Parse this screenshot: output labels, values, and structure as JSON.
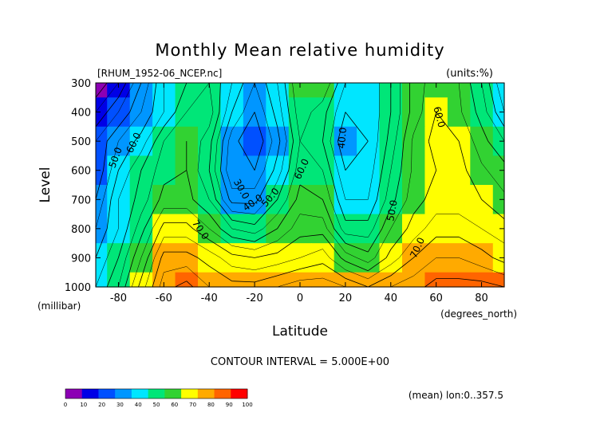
{
  "chart_data": {
    "type": "heatmap",
    "title": "Monthly Mean relative humidity",
    "subtitle_left": "[RHUM_1952-06_NCEP.nc]",
    "subtitle_right": "(units:%)",
    "ylabel": "Level",
    "ylabel_unit": "(millibar)",
    "xlabel": "Latitude",
    "xlabel_unit": "(degrees_north)",
    "xlim": [
      -90,
      90
    ],
    "ylim": [
      1000,
      300
    ],
    "y_axis_reversed": true,
    "x_ticks": [
      -80,
      -60,
      -40,
      -20,
      0,
      20,
      40,
      60,
      80
    ],
    "y_ticks": [
      300,
      400,
      500,
      600,
      700,
      800,
      900,
      1000
    ],
    "levels": [
      300,
      400,
      500,
      600,
      700,
      800,
      900,
      1000
    ],
    "latitudes": [
      -90,
      -80,
      -70,
      -60,
      -50,
      -40,
      -30,
      -20,
      -10,
      0,
      10,
      20,
      30,
      40,
      50,
      60,
      70,
      80,
      90
    ],
    "values": [
      [
        5,
        15,
        30,
        45,
        50,
        55,
        45,
        35,
        45,
        60,
        60,
        45,
        40,
        50,
        62,
        68,
        65,
        55,
        40
      ],
      [
        15,
        25,
        35,
        45,
        55,
        58,
        40,
        30,
        42,
        58,
        52,
        40,
        40,
        50,
        62,
        70,
        66,
        58,
        45
      ],
      [
        25,
        35,
        42,
        55,
        60,
        52,
        32,
        25,
        38,
        55,
        50,
        35,
        40,
        52,
        66,
        72,
        70,
        62,
        55
      ],
      [
        25,
        40,
        50,
        58,
        60,
        50,
        30,
        30,
        42,
        58,
        55,
        40,
        42,
        55,
        66,
        70,
        72,
        66,
        62
      ],
      [
        30,
        45,
        52,
        62,
        62,
        55,
        38,
        38,
        50,
        62,
        60,
        45,
        45,
        58,
        68,
        72,
        72,
        70,
        66
      ],
      [
        35,
        45,
        58,
        72,
        72,
        65,
        55,
        52,
        60,
        68,
        68,
        52,
        52,
        65,
        72,
        78,
        78,
        75,
        72
      ],
      [
        40,
        50,
        65,
        82,
        82,
        78,
        72,
        70,
        72,
        75,
        78,
        68,
        62,
        72,
        80,
        85,
        85,
        82,
        78
      ],
      [
        45,
        55,
        72,
        88,
        92,
        85,
        82,
        82,
        85,
        88,
        88,
        85,
        80,
        85,
        88,
        92,
        92,
        92,
        90
      ]
    ],
    "contour_labels": [
      "50.0",
      "60.0",
      "30.0",
      "40.0",
      "50.0",
      "60.0",
      "70.0",
      "40.0",
      "60.0",
      "50.0",
      "70.0"
    ],
    "footer": "CONTOUR INTERVAL = 5.000E+00",
    "note": "(mean) lon:0..357.5",
    "colorbar": {
      "ticks": [
        "0",
        "10",
        "20",
        "30",
        "40",
        "50",
        "60",
        "70",
        "80",
        "90",
        "100"
      ],
      "colors": [
        "#8c00b4",
        "#0000e6",
        "#0050ff",
        "#0096ff",
        "#00e6ff",
        "#00e678",
        "#32d232",
        "#ffff00",
        "#ffaa00",
        "#ff6400",
        "#ff0000"
      ]
    },
    "grid": false,
    "legend": "bottom-left colorbar"
  }
}
